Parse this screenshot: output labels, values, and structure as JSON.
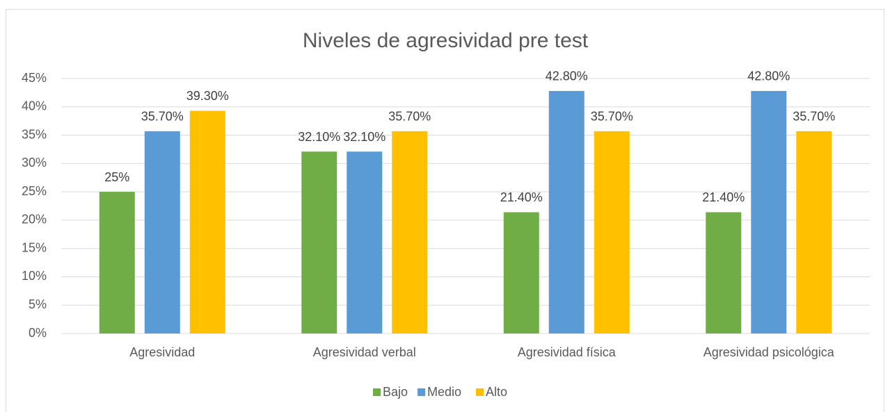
{
  "chart_data": {
    "type": "bar",
    "title": "Niveles de agresividad pre test",
    "categories": [
      "Agresividad",
      "Agresividad verbal",
      "Agresividad física",
      "Agresividad psicológica"
    ],
    "series": [
      {
        "name": "Bajo",
        "color": "#70ad47",
        "values": [
          25,
          32.1,
          21.4,
          21.4
        ],
        "value_labels": [
          "25%",
          "32.10%",
          "21.40%",
          "21.40%"
        ]
      },
      {
        "name": "Medio",
        "color": "#5b9bd5",
        "values": [
          35.7,
          32.1,
          42.8,
          42.8
        ],
        "value_labels": [
          "35.70%",
          "32.10%",
          "42.80%",
          "42.80%"
        ]
      },
      {
        "name": "Alto",
        "color": "#ffc000",
        "values": [
          39.3,
          35.7,
          35.7,
          35.7
        ],
        "value_labels": [
          "39.30%",
          "35.70%",
          "35.70%",
          "35.70%"
        ]
      }
    ],
    "ylim": [
      0,
      45
    ],
    "yticks": [
      {
        "value": 0,
        "label": "0%"
      },
      {
        "value": 5,
        "label": "5%"
      },
      {
        "value": 10,
        "label": "10%"
      },
      {
        "value": 15,
        "label": "15%"
      },
      {
        "value": 20,
        "label": "20%"
      },
      {
        "value": 25,
        "label": "25%"
      },
      {
        "value": 30,
        "label": "30%"
      },
      {
        "value": 35,
        "label": "35%"
      },
      {
        "value": 40,
        "label": "40%"
      },
      {
        "value": 45,
        "label": "45%"
      }
    ],
    "grid": true,
    "legend": "bottom"
  }
}
